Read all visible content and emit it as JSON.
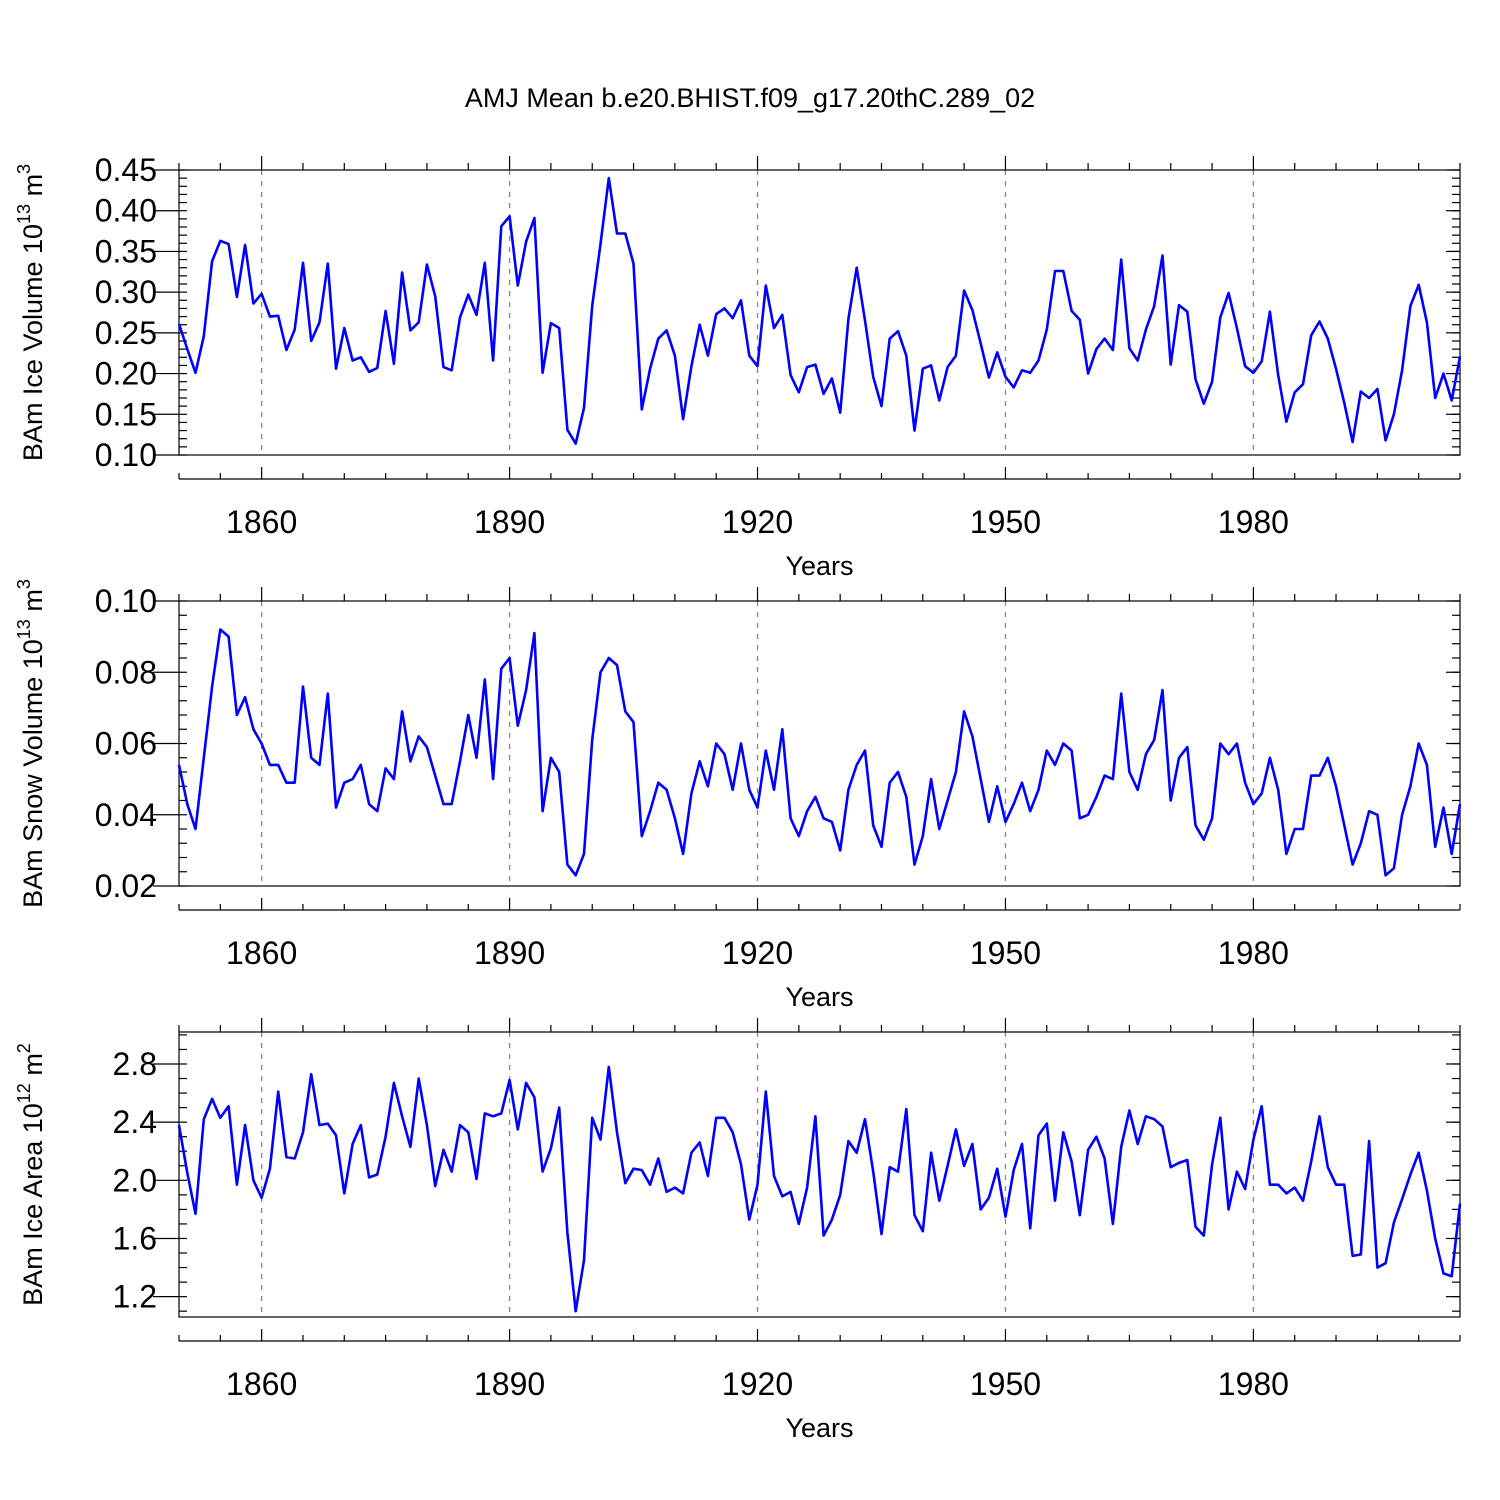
{
  "title": "AMJ Mean b.e20.BHIST.f09_g17.20thC.289_02",
  "colors": {
    "line": "#0000ff",
    "grid": "#888888",
    "axis": "#000000"
  },
  "chart_data": [
    {
      "type": "line",
      "name": "ice-volume",
      "ylabel_main": "BAm Ice Volume 10",
      "ylabel_exp1": "13",
      "ylabel_unit": " m",
      "ylabel_exp2": "3",
      "xlabel": "Years",
      "xlim": [
        1850,
        2005
      ],
      "ylim": [
        0.1,
        0.45
      ],
      "yticks": [
        0.1,
        0.15,
        0.2,
        0.25,
        0.3,
        0.35,
        0.4,
        0.45
      ],
      "ytick_labels": [
        "0.10",
        "0.15",
        "0.20",
        "0.25",
        "0.30",
        "0.35",
        "0.40",
        "0.45"
      ],
      "yminor": 0.01,
      "xticks": [
        1860,
        1890,
        1920,
        1950,
        1980
      ],
      "xtick_labels": [
        "1860",
        "1890",
        "1920",
        "1950",
        "1980"
      ],
      "start_year": 1850,
      "values": [
        0.261,
        0.23,
        0.201,
        0.246,
        0.338,
        0.363,
        0.359,
        0.294,
        0.358,
        0.286,
        0.298,
        0.27,
        0.271,
        0.229,
        0.254,
        0.336,
        0.24,
        0.263,
        0.335,
        0.206,
        0.256,
        0.216,
        0.22,
        0.202,
        0.207,
        0.277,
        0.212,
        0.324,
        0.253,
        0.263,
        0.334,
        0.295,
        0.208,
        0.204,
        0.269,
        0.297,
        0.272,
        0.336,
        0.216,
        0.381,
        0.393,
        0.308,
        0.362,
        0.391,
        0.201,
        0.262,
        0.256,
        0.131,
        0.114,
        0.158,
        0.283,
        0.359,
        0.44,
        0.372,
        0.372,
        0.335,
        0.156,
        0.206,
        0.243,
        0.253,
        0.222,
        0.144,
        0.209,
        0.26,
        0.222,
        0.273,
        0.28,
        0.268,
        0.29,
        0.222,
        0.209,
        0.308,
        0.256,
        0.272,
        0.198,
        0.177,
        0.208,
        0.211,
        0.175,
        0.194,
        0.152,
        0.267,
        0.33,
        0.265,
        0.196,
        0.16,
        0.243,
        0.252,
        0.222,
        0.13,
        0.206,
        0.21,
        0.167,
        0.208,
        0.222,
        0.302,
        0.278,
        0.237,
        0.195,
        0.226,
        0.196,
        0.183,
        0.204,
        0.201,
        0.216,
        0.254,
        0.326,
        0.326,
        0.277,
        0.266,
        0.2,
        0.23,
        0.243,
        0.229,
        0.34,
        0.231,
        0.216,
        0.254,
        0.283,
        0.345,
        0.211,
        0.284,
        0.276,
        0.193,
        0.163,
        0.19,
        0.269,
        0.299,
        0.256,
        0.209,
        0.201,
        0.215,
        0.276,
        0.198,
        0.141,
        0.177,
        0.187,
        0.247,
        0.264,
        0.243,
        0.206,
        0.164,
        0.116,
        0.178,
        0.17,
        0.181,
        0.118,
        0.15,
        0.204,
        0.283,
        0.309,
        0.263,
        0.17,
        0.2,
        0.167,
        0.221
      ]
    },
    {
      "type": "line",
      "name": "snow-volume",
      "ylabel_main": "BAm Snow Volume 10",
      "ylabel_exp1": "13",
      "ylabel_unit": " m",
      "ylabel_exp2": "3",
      "xlabel": "Years",
      "xlim": [
        1850,
        2005
      ],
      "ylim": [
        0.02,
        0.1
      ],
      "yticks": [
        0.02,
        0.04,
        0.06,
        0.08,
        0.1
      ],
      "ytick_labels": [
        "0.02",
        "0.04",
        "0.06",
        "0.08",
        "0.10"
      ],
      "yminor": 0.004,
      "xticks": [
        1860,
        1890,
        1920,
        1950,
        1980
      ],
      "xtick_labels": [
        "1860",
        "1890",
        "1920",
        "1950",
        "1980"
      ],
      "start_year": 1850,
      "values": [
        0.054,
        0.043,
        0.036,
        0.056,
        0.076,
        0.092,
        0.09,
        0.068,
        0.073,
        0.064,
        0.06,
        0.054,
        0.054,
        0.049,
        0.049,
        0.076,
        0.056,
        0.054,
        0.074,
        0.042,
        0.049,
        0.05,
        0.054,
        0.043,
        0.041,
        0.053,
        0.05,
        0.069,
        0.055,
        0.062,
        0.059,
        0.051,
        0.043,
        0.043,
        0.055,
        0.068,
        0.056,
        0.078,
        0.05,
        0.081,
        0.084,
        0.065,
        0.075,
        0.091,
        0.041,
        0.056,
        0.052,
        0.026,
        0.023,
        0.029,
        0.061,
        0.08,
        0.084,
        0.082,
        0.069,
        0.066,
        0.034,
        0.041,
        0.049,
        0.047,
        0.039,
        0.029,
        0.046,
        0.055,
        0.048,
        0.06,
        0.057,
        0.047,
        0.06,
        0.047,
        0.042,
        0.058,
        0.047,
        0.064,
        0.039,
        0.034,
        0.041,
        0.045,
        0.039,
        0.038,
        0.03,
        0.047,
        0.054,
        0.058,
        0.037,
        0.031,
        0.049,
        0.052,
        0.045,
        0.026,
        0.034,
        0.05,
        0.036,
        0.044,
        0.052,
        0.069,
        0.062,
        0.05,
        0.038,
        0.048,
        0.038,
        0.043,
        0.049,
        0.041,
        0.047,
        0.058,
        0.054,
        0.06,
        0.058,
        0.039,
        0.04,
        0.045,
        0.051,
        0.05,
        0.074,
        0.052,
        0.047,
        0.057,
        0.061,
        0.075,
        0.044,
        0.056,
        0.059,
        0.037,
        0.033,
        0.039,
        0.06,
        0.057,
        0.06,
        0.049,
        0.043,
        0.046,
        0.056,
        0.047,
        0.029,
        0.036,
        0.036,
        0.051,
        0.051,
        0.056,
        0.048,
        0.037,
        0.026,
        0.032,
        0.041,
        0.04,
        0.023,
        0.025,
        0.04,
        0.048,
        0.06,
        0.054,
        0.031,
        0.042,
        0.029,
        0.043
      ]
    },
    {
      "type": "line",
      "name": "ice-area",
      "ylabel_main": "BAm Ice Area 10",
      "ylabel_exp1": "12",
      "ylabel_unit": " m",
      "ylabel_exp2": "2",
      "xlabel": "Years",
      "xlim": [
        1850,
        2005
      ],
      "ylim": [
        1.06,
        3.02
      ],
      "yticks": [
        1.2,
        1.6,
        2.0,
        2.4,
        2.8
      ],
      "ytick_labels": [
        "1.2",
        "1.6",
        "2.0",
        "2.4",
        "2.8"
      ],
      "yminor": 0.1,
      "xticks": [
        1860,
        1890,
        1920,
        1950,
        1980
      ],
      "xtick_labels": [
        "1860",
        "1890",
        "1920",
        "1950",
        "1980"
      ],
      "start_year": 1850,
      "values": [
        2.38,
        2.05,
        1.77,
        2.42,
        2.56,
        2.43,
        2.51,
        1.97,
        2.38,
        2.0,
        1.88,
        2.08,
        2.61,
        2.16,
        2.15,
        2.33,
        2.73,
        2.38,
        2.39,
        2.31,
        1.91,
        2.25,
        2.38,
        2.02,
        2.04,
        2.3,
        2.67,
        2.44,
        2.23,
        2.7,
        2.38,
        1.96,
        2.21,
        2.06,
        2.38,
        2.33,
        2.01,
        2.46,
        2.44,
        2.46,
        2.69,
        2.35,
        2.67,
        2.57,
        2.06,
        2.22,
        2.5,
        1.64,
        1.1,
        1.45,
        2.43,
        2.28,
        2.78,
        2.33,
        1.98,
        2.08,
        2.07,
        1.97,
        2.15,
        1.92,
        1.95,
        1.91,
        2.19,
        2.26,
        2.03,
        2.43,
        2.43,
        2.33,
        2.11,
        1.73,
        1.97,
        2.61,
        2.03,
        1.89,
        1.92,
        1.7,
        1.95,
        2.44,
        1.62,
        1.73,
        1.9,
        2.27,
        2.19,
        2.42,
        2.06,
        1.63,
        2.09,
        2.06,
        2.49,
        1.76,
        1.65,
        2.19,
        1.86,
        2.1,
        2.35,
        2.1,
        2.25,
        1.8,
        1.88,
        2.08,
        1.75,
        2.07,
        2.25,
        1.67,
        2.31,
        2.39,
        1.86,
        2.33,
        2.13,
        1.76,
        2.21,
        2.3,
        2.15,
        1.7,
        2.23,
        2.48,
        2.25,
        2.44,
        2.42,
        2.37,
        2.09,
        2.12,
        2.14,
        1.68,
        1.62,
        2.11,
        2.43,
        1.8,
        2.06,
        1.94,
        2.28,
        2.51,
        1.97,
        1.97,
        1.91,
        1.95,
        1.86,
        2.13,
        2.44,
        2.09,
        1.97,
        1.97,
        1.48,
        1.49,
        2.27,
        1.4,
        1.43,
        1.71,
        1.87,
        2.04,
        2.19,
        1.93,
        1.6,
        1.36,
        1.34,
        1.84
      ]
    }
  ]
}
